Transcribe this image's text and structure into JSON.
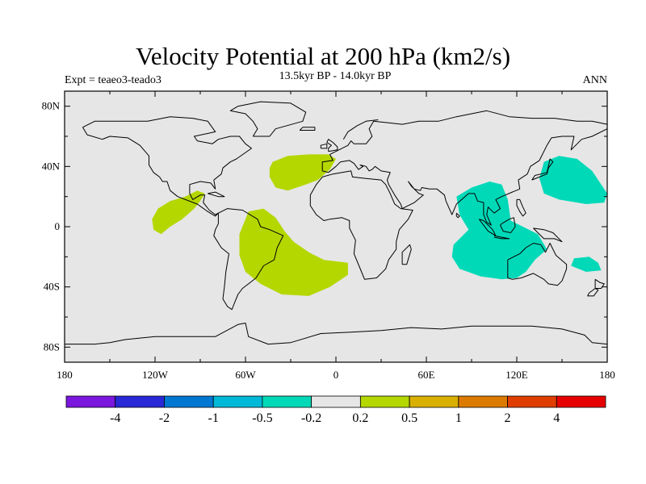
{
  "header": {
    "title": "Velocity Potential at 200 hPa (km2/s)",
    "subtitle": "13.5kyr BP - 14.0kyr BP",
    "left_label": "Expt = teaeo3-teado3",
    "right_label": "ANN"
  },
  "map": {
    "projection": "cylindrical-equidistant",
    "lon_range": [
      -180,
      180
    ],
    "lat_range": [
      -90,
      90
    ],
    "background_color": "#e6e6e6",
    "lat_ticks": [
      {
        "value": 80,
        "label": "80N"
      },
      {
        "value": 40,
        "label": "40N"
      },
      {
        "value": 0,
        "label": "0"
      },
      {
        "value": -40,
        "label": "40S"
      },
      {
        "value": -80,
        "label": "80S"
      }
    ],
    "lon_ticks": [
      {
        "value": -180,
        "label": "180"
      },
      {
        "value": -120,
        "label": "120W"
      },
      {
        "value": -60,
        "label": "60W"
      },
      {
        "value": 0,
        "label": "0"
      },
      {
        "value": 60,
        "label": "60E"
      },
      {
        "value": 120,
        "label": "120E"
      },
      {
        "value": 180,
        "label": "180"
      }
    ],
    "regions": [
      {
        "name": "north-atlantic-positive",
        "category": "0.2 to 0.5",
        "color": "#b4d700",
        "lonlat": [
          [
            -42,
            43
          ],
          [
            -32,
            47
          ],
          [
            -18,
            48
          ],
          [
            -5,
            48
          ],
          [
            0,
            45
          ],
          [
            -4,
            38
          ],
          [
            -12,
            31
          ],
          [
            -20,
            28
          ],
          [
            -32,
            24
          ],
          [
            -40,
            26
          ],
          [
            -44,
            33
          ],
          [
            -44,
            39
          ]
        ]
      },
      {
        "name": "central-america-positive",
        "category": "0.2 to 0.5",
        "color": "#b4d700",
        "lonlat": [
          [
            -118,
            12
          ],
          [
            -110,
            17
          ],
          [
            -100,
            20
          ],
          [
            -92,
            24
          ],
          [
            -87,
            22
          ],
          [
            -90,
            17
          ],
          [
            -94,
            12
          ],
          [
            -102,
            5
          ],
          [
            -110,
            0
          ],
          [
            -116,
            -5
          ],
          [
            -121,
            -2
          ],
          [
            -122,
            5
          ]
        ]
      },
      {
        "name": "south-america-atlantic-positive",
        "category": "0.2 to 0.5",
        "color": "#b4d700",
        "lonlat": [
          [
            -58,
            10
          ],
          [
            -48,
            12
          ],
          [
            -40,
            6
          ],
          [
            -34,
            -3
          ],
          [
            -28,
            -10
          ],
          [
            -18,
            -17
          ],
          [
            -8,
            -22
          ],
          [
            8,
            -24
          ],
          [
            8,
            -32
          ],
          [
            -4,
            -40
          ],
          [
            -18,
            -46
          ],
          [
            -36,
            -45
          ],
          [
            -50,
            -38
          ],
          [
            -60,
            -30
          ],
          [
            -64,
            -19
          ],
          [
            -64,
            -5
          ],
          [
            -60,
            5
          ]
        ]
      },
      {
        "name": "indian-ocean-maritime-negative",
        "category": "-0.5 to -0.2",
        "color": "#00d9b8",
        "lonlat": [
          [
            80,
            20
          ],
          [
            90,
            26
          ],
          [
            102,
            30
          ],
          [
            110,
            28
          ],
          [
            114,
            18
          ],
          [
            116,
            4
          ],
          [
            134,
            -5
          ],
          [
            140,
            -15
          ],
          [
            132,
            -22
          ],
          [
            126,
            -30
          ],
          [
            120,
            -34
          ],
          [
            110,
            -35
          ],
          [
            96,
            -33
          ],
          [
            82,
            -28
          ],
          [
            77,
            -20
          ],
          [
            78,
            -12
          ],
          [
            88,
            -2
          ],
          [
            82,
            8
          ]
        ]
      },
      {
        "name": "northwest-pacific-negative",
        "category": "-0.5 to -0.2",
        "color": "#00d9b8",
        "lonlat": [
          [
            138,
            43
          ],
          [
            148,
            47
          ],
          [
            160,
            45
          ],
          [
            170,
            37
          ],
          [
            180,
            22
          ],
          [
            178,
            16
          ],
          [
            166,
            15
          ],
          [
            148,
            18
          ],
          [
            138,
            22
          ],
          [
            135,
            32
          ]
        ]
      },
      {
        "name": "south-pacific-negative",
        "category": "-0.5 to -0.2",
        "color": "#00d9b8",
        "lonlat": [
          [
            158,
            -21
          ],
          [
            168,
            -20
          ],
          [
            174,
            -24
          ],
          [
            176,
            -29
          ],
          [
            166,
            -30
          ],
          [
            156,
            -26
          ]
        ]
      }
    ]
  },
  "colorbar": {
    "colors": [
      "#7b16de",
      "#2828d6",
      "#0078d2",
      "#00b8d8",
      "#00d9b8",
      "#e6e6e6",
      "#b4d700",
      "#d9b000",
      "#dc7a00",
      "#e03e00",
      "#e60000"
    ],
    "labels": [
      "-4",
      "-2",
      "-1",
      "-0.5",
      "-0.2",
      "0.2",
      "0.5",
      "1",
      "2",
      "4"
    ]
  }
}
